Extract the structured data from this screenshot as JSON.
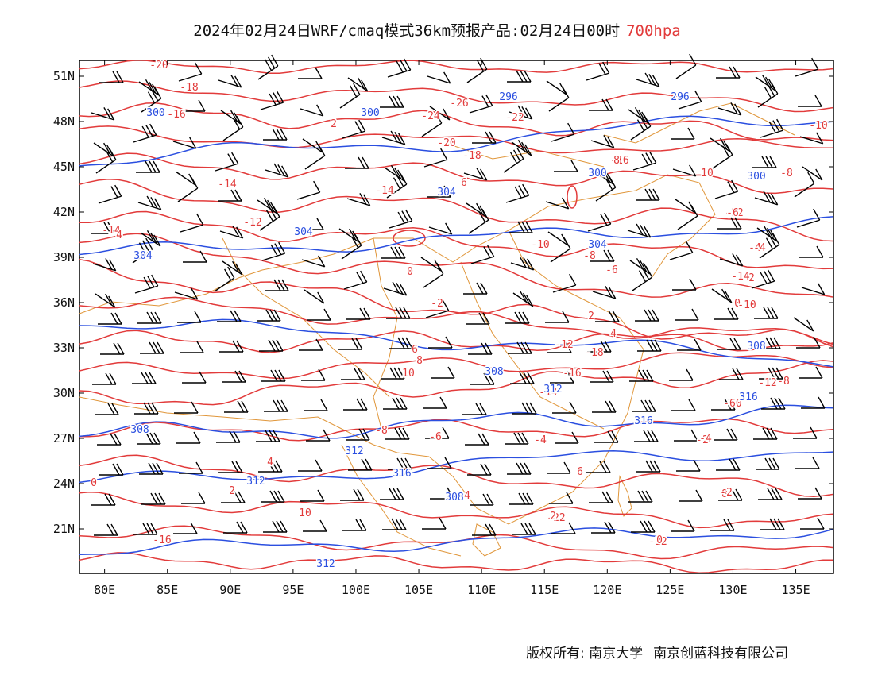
{
  "title": {
    "main": "2024年02月24日WRF/cmaq模式36km预报产品:02月24日00时",
    "level": "700hpa"
  },
  "colors": {
    "temperature": "#e23b3b",
    "height": "#2b4fe0",
    "border": "#e0963a",
    "barb": "#000000"
  },
  "axes": {
    "lon_labels": [
      "80E",
      "85E",
      "90E",
      "95E",
      "100E",
      "105E",
      "110E",
      "115E",
      "120E",
      "125E",
      "130E",
      "135E"
    ],
    "lat_labels": [
      "51N",
      "48N",
      "45N",
      "42N",
      "39N",
      "36N",
      "33N",
      "30N",
      "27N",
      "24N",
      "21N"
    ]
  },
  "contour_labels": {
    "temperature": [
      "-20",
      "-18",
      "-16",
      "-26",
      "-24",
      "-22",
      "-20",
      "-18",
      "-16",
      "-14",
      "-14",
      "-12",
      "-14",
      "-12",
      "-10",
      "-8",
      "-6",
      "-4",
      "-2",
      "0",
      "2",
      "4",
      "6",
      "8",
      "10",
      "-18",
      "-16",
      "-14",
      "-12",
      "-10",
      "-8",
      "-6",
      "-4",
      "-2",
      "0",
      "2",
      "4",
      "6",
      "8",
      "10",
      "-22",
      "-16",
      "-12",
      "-10",
      "-8",
      "-6",
      "-4",
      "-2",
      "0",
      "2",
      "4",
      "6",
      "8",
      "10",
      "-14",
      "-12",
      "-10",
      "-8",
      "-6",
      "-4",
      "-2",
      "0",
      "2",
      "4",
      "6",
      "8"
    ],
    "height": [
      "300",
      "300",
      "296",
      "296",
      "304",
      "300",
      "300",
      "304",
      "304",
      "304",
      "308",
      "308",
      "308",
      "312",
      "312",
      "312",
      "316",
      "316",
      "316",
      "308",
      "312"
    ]
  },
  "footer": {
    "left": "版权所有: 南京大学",
    "right": "南京创蓝科技有限公司"
  }
}
